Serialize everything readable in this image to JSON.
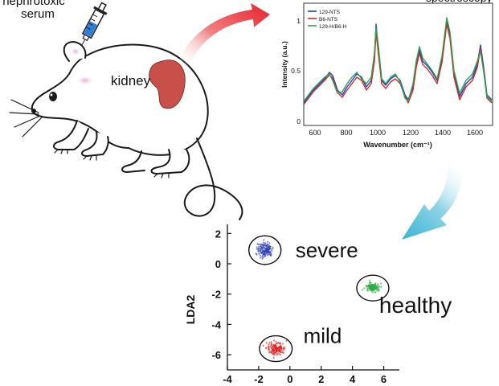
{
  "injection": {
    "label_line1": "nephrotoxic",
    "label_line2": "serum"
  },
  "mouse": {
    "organ_label": "kidney"
  },
  "spectrum": {
    "title_fragment": "spectroscopy",
    "xlabel": "Wavenumber (cm⁻¹)",
    "ylabel": "Intensity (a.u.)",
    "legend": [
      "129-NTS",
      "B6-NTS",
      "129-H/B6-H"
    ],
    "colors": [
      "#1f3fbf",
      "#d12a2a",
      "#2ea34a"
    ],
    "x_ticks": [
      "600",
      "800",
      "1000",
      "1200",
      "1400",
      "1600"
    ],
    "y_ticks": [
      "0",
      "0.5",
      "1"
    ]
  },
  "chart_data": {
    "type": "scatter",
    "xlabel": "",
    "ylabel": "LDA2",
    "xlim": [
      -4,
      7
    ],
    "ylim": [
      -7,
      2.6
    ],
    "x_ticks": [
      "-4",
      "-2",
      "0",
      "2",
      "4",
      "6"
    ],
    "y_ticks": [
      "2",
      "0",
      "-2",
      "-4",
      "-6"
    ],
    "series": [
      {
        "name": "severe",
        "color": "#2a3fb0",
        "center": [
          -1.6,
          0.9
        ],
        "spread": [
          0.45,
          0.45
        ]
      },
      {
        "name": "healthy",
        "color": "#2eaa45",
        "center": [
          5.3,
          -1.6
        ],
        "spread": [
          0.35,
          0.25
        ]
      },
      {
        "name": "mild",
        "color": "#e02020",
        "center": [
          -0.9,
          -5.6
        ],
        "spread": [
          0.55,
          0.35
        ]
      }
    ]
  },
  "colors": {
    "arrow_red": "#e8202a",
    "arrow_cyan": "#39b4d2",
    "kidney": "#c9504a"
  }
}
